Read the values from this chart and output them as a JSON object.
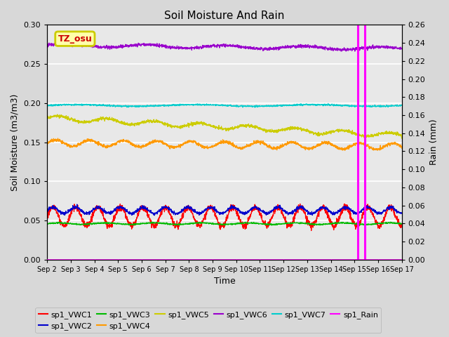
{
  "title": "Soil Moisture And Rain",
  "xlabel": "Time",
  "ylabel_left": "Soil Moisture (m3/m3)",
  "ylabel_right": "Rain (mm)",
  "ylim_left": [
    0.0,
    0.3
  ],
  "ylim_right": [
    0.0,
    0.26
  ],
  "yticks_left": [
    0.0,
    0.05,
    0.1,
    0.15,
    0.2,
    0.25,
    0.3
  ],
  "yticks_right": [
    0.0,
    0.02,
    0.04,
    0.06,
    0.08,
    0.1,
    0.12,
    0.14,
    0.16,
    0.18,
    0.2,
    0.22,
    0.24,
    0.26
  ],
  "xtick_labels": [
    "Sep 2",
    "Sep 3",
    "Sep 4",
    "Sep 5",
    "Sep 6",
    "Sep 7",
    "Sep 8",
    "Sep 9",
    "Sep 10",
    "Sep 11",
    "Sep 12",
    "Sep 13",
    "Sep 14",
    "Sep 15",
    "Sep 16",
    "Sep 17"
  ],
  "fig_bg": "#d8d8d8",
  "plot_bg": "#e8e8e8",
  "grid_color": "#ffffff",
  "vwc1": {
    "color": "#ff0000",
    "base": 0.055,
    "amp": 0.012,
    "freq": 1.05
  },
  "vwc2": {
    "color": "#0000cc",
    "base": 0.063,
    "amp": 0.004,
    "freq": 1.05
  },
  "vwc3": {
    "color": "#00bb00",
    "base": 0.046,
    "amp": 0.001,
    "freq": 0.5
  },
  "vwc4": {
    "color": "#ff9900",
    "base": 0.149,
    "amp": 0.004,
    "freq": 0.7
  },
  "vwc5": {
    "color": "#cccc00",
    "base": 0.181,
    "amp": 0.003,
    "freq": 0.5
  },
  "vwc6": {
    "color": "#9900cc",
    "base": 0.274,
    "amp": 0.002,
    "freq": 0.3
  },
  "vwc7": {
    "color": "#00cccc",
    "base": 0.197,
    "amp": 0.001,
    "freq": 0.2
  },
  "rain_color": "#ff00ff",
  "rain_spike1": 13.15,
  "rain_spike2": 13.45,
  "legend_labels": [
    "sp1_VWC1",
    "sp1_VWC2",
    "sp1_VWC3",
    "sp1_VWC4",
    "sp1_VWC5",
    "sp1_VWC6",
    "sp1_VWC7",
    "sp1_Rain"
  ],
  "legend_colors": [
    "#ff0000",
    "#0000cc",
    "#00bb00",
    "#ff9900",
    "#cccc00",
    "#9900cc",
    "#00cccc",
    "#ff00ff"
  ],
  "tz_label": "TZ_osu",
  "tz_text_color": "#cc0000",
  "tz_box_face": "#ffffaa",
  "tz_box_edge": "#cccc00"
}
